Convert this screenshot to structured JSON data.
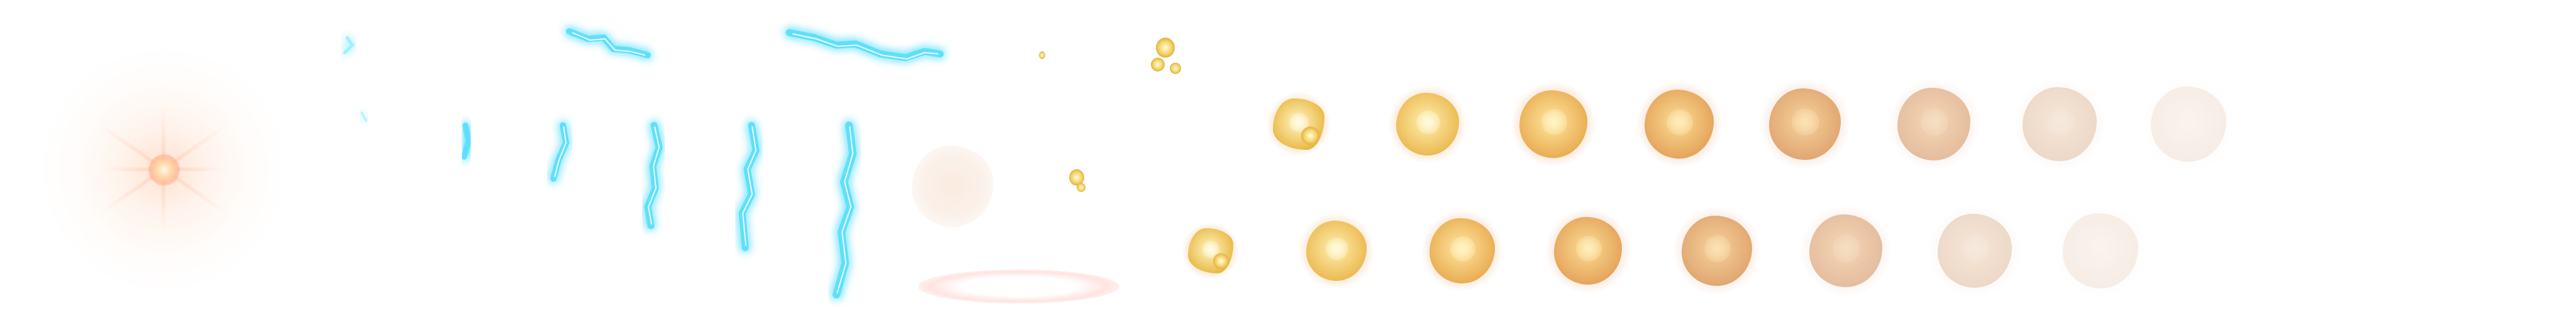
{
  "sheet": {
    "title": "",
    "background": "#ffffff"
  },
  "sprites": {
    "flare": {
      "name": "lens-flare",
      "color": "#ffc2a0"
    },
    "lightning": {
      "name": "lightning-bolt-frames",
      "color": "#33d6f5",
      "frame_count": 7
    },
    "smoke": {
      "name": "smoke-puff",
      "color": "#f6e4da"
    },
    "ring": {
      "name": "ground-ring",
      "color": "#ffcfca"
    },
    "explosion_row1": {
      "name": "explosion-frames-row-1",
      "frame_count": 8
    },
    "explosion_row2": {
      "name": "explosion-frames-row-2",
      "frame_count": 8
    },
    "palette": {
      "hot": "#fff3b0",
      "mid": "#f2c34a",
      "warm": "#e9a24a",
      "fade": "#ecd2bc"
    }
  }
}
